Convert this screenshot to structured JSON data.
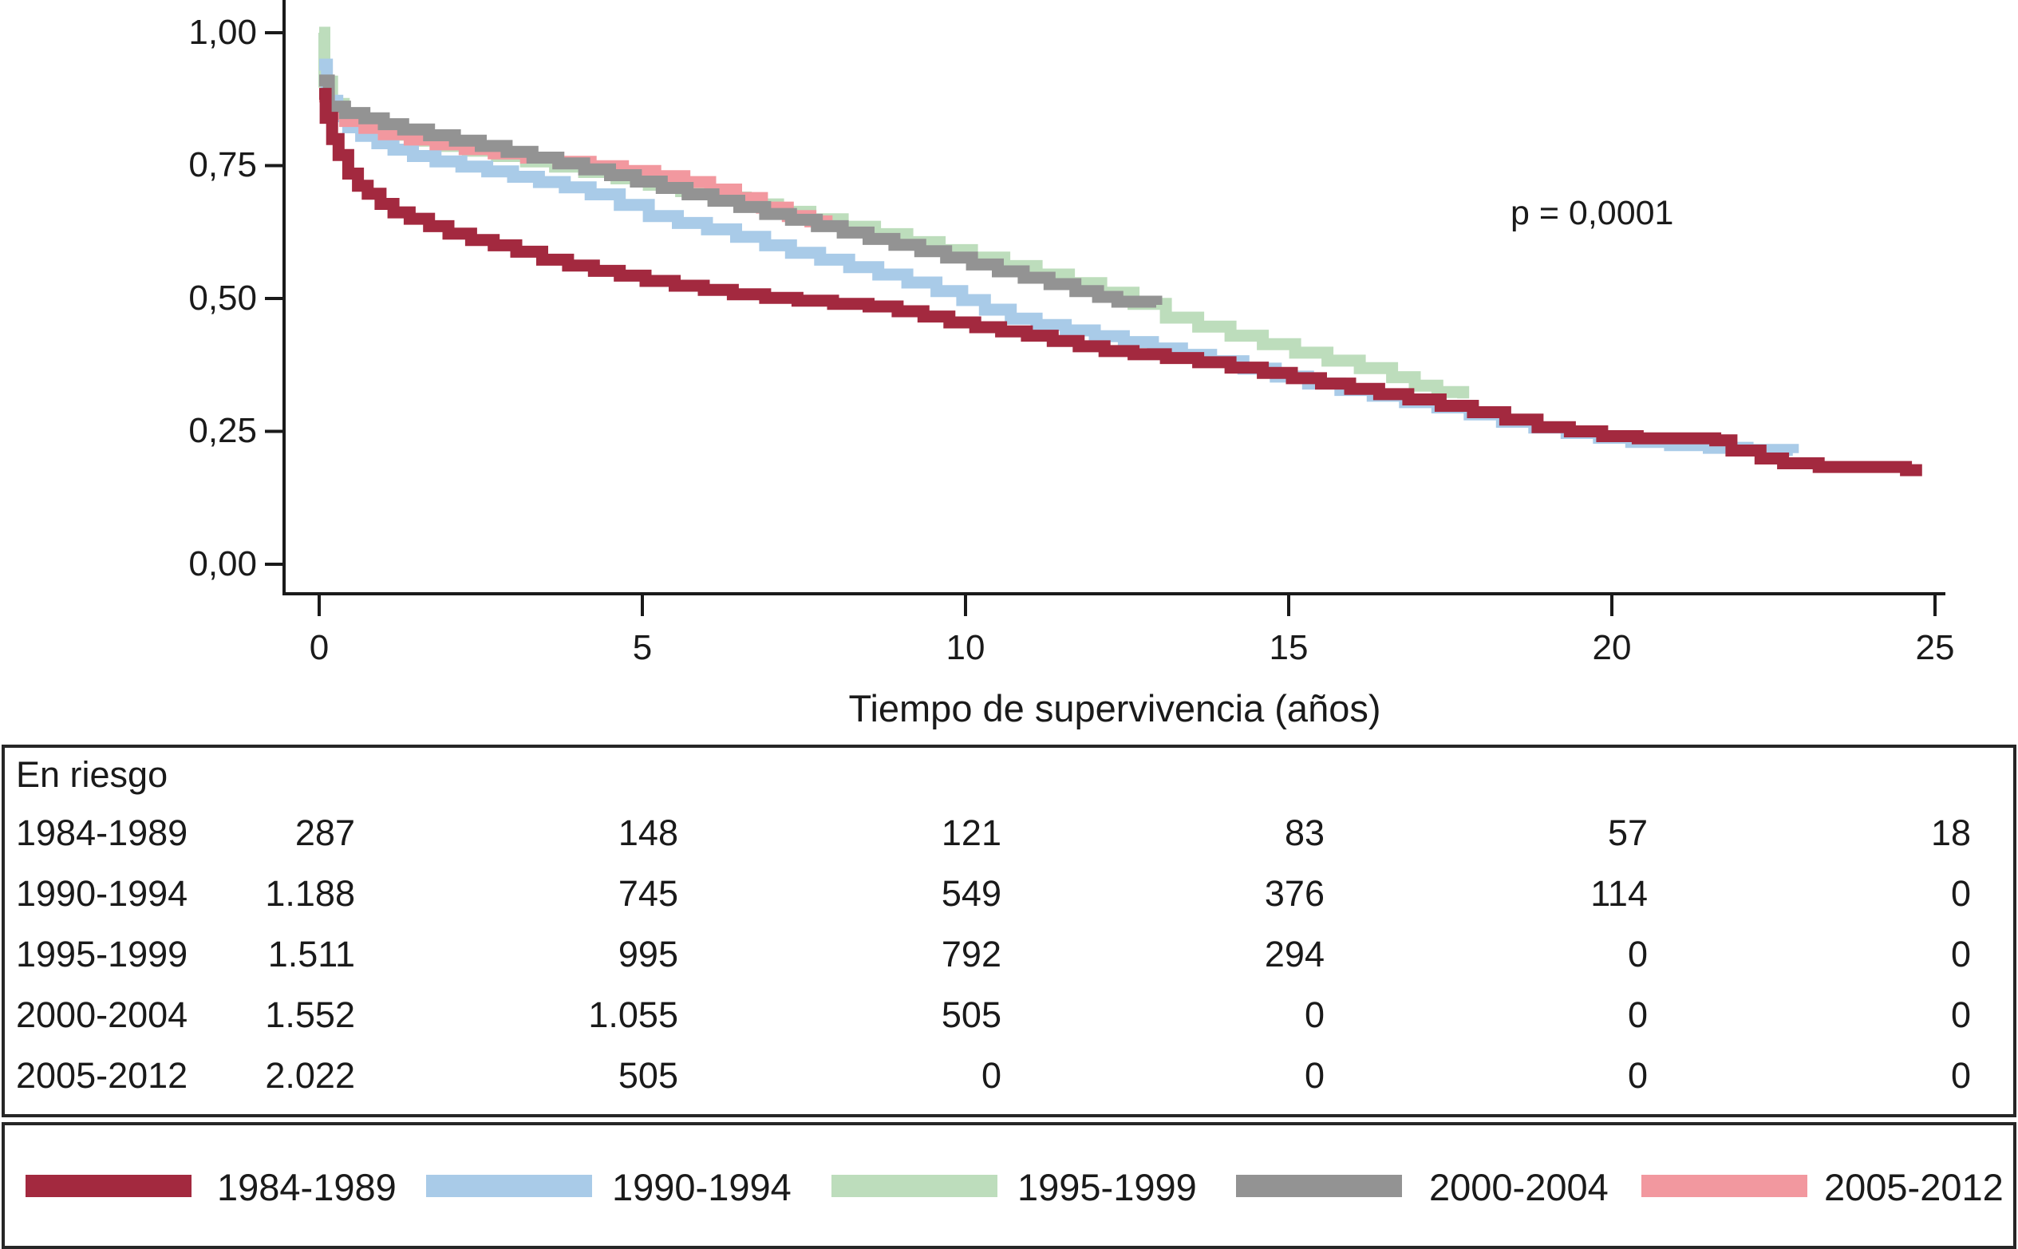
{
  "chart": {
    "p_value_text": "p = 0,0001",
    "x_axis": {
      "title": "Tiempo de supervivencia (años)",
      "ticks": [
        "0",
        "5",
        "10",
        "15",
        "20",
        "25"
      ]
    },
    "y_axis": {
      "ticks": [
        "1,00",
        "0,75",
        "0,50",
        "0,25",
        "0,00"
      ]
    }
  },
  "chart_data": {
    "type": "line",
    "subtype": "kaplan-meier-step",
    "title": "",
    "xlabel": "Tiempo de supervivencia (años)",
    "ylabel": "",
    "xlim": [
      0,
      25
    ],
    "ylim": [
      0.0,
      1.0
    ],
    "x_ticks": [
      0,
      5,
      10,
      15,
      20,
      25
    ],
    "y_ticks": [
      1.0,
      0.75,
      0.5,
      0.25,
      0.0
    ],
    "grid": false,
    "legend_position": "bottom",
    "annotation": {
      "text": "p = 0,0001",
      "x": 18.4,
      "y": 0.7
    },
    "axis_color": "#1a1a1a",
    "series": [
      {
        "name": "1984-1989",
        "color": "#A3293F",
        "points": [
          [
            0,
            0.885
          ],
          [
            0.1,
            0.84
          ],
          [
            0.2,
            0.8
          ],
          [
            0.3,
            0.77
          ],
          [
            0.45,
            0.735
          ],
          [
            0.6,
            0.712
          ],
          [
            0.75,
            0.697
          ],
          [
            0.95,
            0.678
          ],
          [
            1.15,
            0.662
          ],
          [
            1.4,
            0.65
          ],
          [
            1.7,
            0.636
          ],
          [
            2.0,
            0.622
          ],
          [
            2.35,
            0.61
          ],
          [
            2.7,
            0.6
          ],
          [
            3.05,
            0.588
          ],
          [
            3.45,
            0.573
          ],
          [
            3.85,
            0.562
          ],
          [
            4.25,
            0.552
          ],
          [
            4.65,
            0.543
          ],
          [
            5.05,
            0.533
          ],
          [
            5.5,
            0.524
          ],
          [
            5.95,
            0.516
          ],
          [
            6.4,
            0.508
          ],
          [
            6.9,
            0.501
          ],
          [
            7.4,
            0.496
          ],
          [
            7.95,
            0.49
          ],
          [
            8.5,
            0.485
          ],
          [
            8.95,
            0.476
          ],
          [
            9.35,
            0.466
          ],
          [
            9.75,
            0.455
          ],
          [
            10.15,
            0.446
          ],
          [
            10.55,
            0.438
          ],
          [
            10.95,
            0.43
          ],
          [
            11.35,
            0.42
          ],
          [
            11.75,
            0.41
          ],
          [
            12.15,
            0.401
          ],
          [
            12.6,
            0.395
          ],
          [
            13.1,
            0.388
          ],
          [
            13.6,
            0.38
          ],
          [
            14.1,
            0.37
          ],
          [
            14.6,
            0.36
          ],
          [
            15.05,
            0.35
          ],
          [
            15.5,
            0.34
          ],
          [
            15.95,
            0.33
          ],
          [
            16.4,
            0.32
          ],
          [
            16.85,
            0.31
          ],
          [
            17.35,
            0.298
          ],
          [
            17.85,
            0.286
          ],
          [
            18.35,
            0.272
          ],
          [
            18.85,
            0.258
          ],
          [
            19.35,
            0.25
          ],
          [
            19.85,
            0.241
          ],
          [
            20.4,
            0.237
          ],
          [
            21.6,
            0.233
          ],
          [
            21.85,
            0.214
          ],
          [
            22.3,
            0.199
          ],
          [
            22.65,
            0.19
          ],
          [
            23.2,
            0.183
          ],
          [
            24.55,
            0.177
          ],
          [
            24.8,
            0.177
          ]
        ]
      },
      {
        "name": "1990-1994",
        "color": "#A9CBE8",
        "points": [
          [
            0,
            0.94
          ],
          [
            0.12,
            0.872
          ],
          [
            0.28,
            0.843
          ],
          [
            0.45,
            0.822
          ],
          [
            0.65,
            0.806
          ],
          [
            0.9,
            0.792
          ],
          [
            1.15,
            0.78
          ],
          [
            1.45,
            0.768
          ],
          [
            1.8,
            0.758
          ],
          [
            2.2,
            0.748
          ],
          [
            2.6,
            0.739
          ],
          [
            3.0,
            0.729
          ],
          [
            3.4,
            0.719
          ],
          [
            3.8,
            0.709
          ],
          [
            4.2,
            0.696
          ],
          [
            4.65,
            0.676
          ],
          [
            5.1,
            0.655
          ],
          [
            5.55,
            0.642
          ],
          [
            6.0,
            0.63
          ],
          [
            6.45,
            0.616
          ],
          [
            6.9,
            0.6
          ],
          [
            7.3,
            0.586
          ],
          [
            7.75,
            0.573
          ],
          [
            8.2,
            0.559
          ],
          [
            8.65,
            0.545
          ],
          [
            9.1,
            0.53
          ],
          [
            9.55,
            0.514
          ],
          [
            9.95,
            0.497
          ],
          [
            10.3,
            0.479
          ],
          [
            10.7,
            0.462
          ],
          [
            11.1,
            0.45
          ],
          [
            11.55,
            0.44
          ],
          [
            12.0,
            0.429
          ],
          [
            12.45,
            0.418
          ],
          [
            12.9,
            0.406
          ],
          [
            13.35,
            0.394
          ],
          [
            13.8,
            0.382
          ],
          [
            14.3,
            0.368
          ],
          [
            14.8,
            0.353
          ],
          [
            15.3,
            0.34
          ],
          [
            15.8,
            0.328
          ],
          [
            16.3,
            0.317
          ],
          [
            16.8,
            0.305
          ],
          [
            17.3,
            0.295
          ],
          [
            17.8,
            0.282
          ],
          [
            18.3,
            0.268
          ],
          [
            18.8,
            0.257
          ],
          [
            19.3,
            0.247
          ],
          [
            19.8,
            0.238
          ],
          [
            20.3,
            0.23
          ],
          [
            20.9,
            0.224
          ],
          [
            21.5,
            0.219
          ],
          [
            22.1,
            0.215
          ],
          [
            22.8,
            0.209
          ]
        ]
      },
      {
        "name": "1995-1999",
        "color": "#BDDDBC",
        "points": [
          [
            0,
            1.0
          ],
          [
            0.08,
            0.908
          ],
          [
            0.2,
            0.866
          ],
          [
            0.38,
            0.845
          ],
          [
            0.6,
            0.831
          ],
          [
            0.85,
            0.819
          ],
          [
            1.15,
            0.808
          ],
          [
            1.5,
            0.797
          ],
          [
            1.9,
            0.787
          ],
          [
            2.3,
            0.778
          ],
          [
            2.75,
            0.768
          ],
          [
            3.2,
            0.758
          ],
          [
            3.65,
            0.748
          ],
          [
            4.1,
            0.738
          ],
          [
            4.6,
            0.726
          ],
          [
            5.1,
            0.714
          ],
          [
            5.6,
            0.702
          ],
          [
            6.1,
            0.69
          ],
          [
            6.6,
            0.677
          ],
          [
            7.1,
            0.663
          ],
          [
            7.6,
            0.649
          ],
          [
            8.1,
            0.635
          ],
          [
            8.6,
            0.621
          ],
          [
            9.1,
            0.606
          ],
          [
            9.6,
            0.591
          ],
          [
            10.1,
            0.577
          ],
          [
            10.6,
            0.561
          ],
          [
            11.1,
            0.545
          ],
          [
            11.6,
            0.529
          ],
          [
            12.1,
            0.511
          ],
          [
            12.6,
            0.49
          ],
          [
            13.1,
            0.464
          ],
          [
            13.6,
            0.447
          ],
          [
            14.1,
            0.43
          ],
          [
            14.6,
            0.414
          ],
          [
            15.1,
            0.398
          ],
          [
            15.6,
            0.383
          ],
          [
            16.1,
            0.369
          ],
          [
            16.6,
            0.352
          ],
          [
            16.95,
            0.336
          ],
          [
            17.3,
            0.324
          ],
          [
            17.7,
            0.312
          ]
        ]
      },
      {
        "name": "2000-2004",
        "color": "#939393",
        "points": [
          [
            0,
            0.91
          ],
          [
            0.15,
            0.861
          ],
          [
            0.4,
            0.849
          ],
          [
            0.7,
            0.839
          ],
          [
            1.0,
            0.828
          ],
          [
            1.3,
            0.818
          ],
          [
            1.7,
            0.807
          ],
          [
            2.1,
            0.797
          ],
          [
            2.5,
            0.787
          ],
          [
            2.9,
            0.776
          ],
          [
            3.3,
            0.765
          ],
          [
            3.7,
            0.754
          ],
          [
            4.1,
            0.743
          ],
          [
            4.5,
            0.732
          ],
          [
            4.9,
            0.72
          ],
          [
            5.3,
            0.708
          ],
          [
            5.7,
            0.696
          ],
          [
            6.1,
            0.684
          ],
          [
            6.5,
            0.672
          ],
          [
            6.9,
            0.659
          ],
          [
            7.3,
            0.648
          ],
          [
            7.7,
            0.636
          ],
          [
            8.1,
            0.624
          ],
          [
            8.5,
            0.612
          ],
          [
            8.9,
            0.601
          ],
          [
            9.3,
            0.589
          ],
          [
            9.7,
            0.577
          ],
          [
            10.1,
            0.564
          ],
          [
            10.5,
            0.551
          ],
          [
            10.9,
            0.539
          ],
          [
            11.3,
            0.527
          ],
          [
            11.7,
            0.514
          ],
          [
            12.05,
            0.503
          ],
          [
            12.35,
            0.494
          ],
          [
            12.95,
            0.488
          ]
        ]
      },
      {
        "name": "2005-2012",
        "color": "#F2989F",
        "points": [
          [
            0,
            0.88
          ],
          [
            0.15,
            0.847
          ],
          [
            0.4,
            0.834
          ],
          [
            0.7,
            0.821
          ],
          [
            1.0,
            0.809
          ],
          [
            1.4,
            0.799
          ],
          [
            1.8,
            0.79
          ],
          [
            2.25,
            0.781
          ],
          [
            2.7,
            0.773
          ],
          [
            3.2,
            0.765
          ],
          [
            3.7,
            0.757
          ],
          [
            4.2,
            0.749
          ],
          [
            4.7,
            0.74
          ],
          [
            5.2,
            0.73
          ],
          [
            5.65,
            0.719
          ],
          [
            6.05,
            0.705
          ],
          [
            6.45,
            0.689
          ],
          [
            6.85,
            0.671
          ],
          [
            7.25,
            0.655
          ],
          [
            7.6,
            0.645
          ],
          [
            7.85,
            0.641
          ]
        ]
      }
    ]
  },
  "risk_table": {
    "title": "En riesgo",
    "time_points": [
      0,
      5,
      10,
      15,
      20,
      25
    ],
    "rows": [
      {
        "label": "1984-1989",
        "values": [
          "287",
          "148",
          "121",
          "83",
          "57",
          "18"
        ]
      },
      {
        "label": "1990-1994",
        "values": [
          "1.188",
          "745",
          "549",
          "376",
          "114",
          "0"
        ]
      },
      {
        "label": "1995-1999",
        "values": [
          "1.511",
          "995",
          "792",
          "294",
          "0",
          "0"
        ]
      },
      {
        "label": "2000-2004",
        "values": [
          "1.552",
          "1.055",
          "505",
          "0",
          "0",
          "0"
        ]
      },
      {
        "label": "2005-2012",
        "values": [
          "2.022",
          "505",
          "0",
          "0",
          "0",
          "0"
        ]
      }
    ]
  },
  "legend": {
    "items": [
      {
        "label": "1984-1989",
        "color": "#A3293F"
      },
      {
        "label": "1990-1994",
        "color": "#A9CBE8"
      },
      {
        "label": "1995-1999",
        "color": "#BDDDBC"
      },
      {
        "label": "2000-2004",
        "color": "#939393"
      },
      {
        "label": "2005-2012",
        "color": "#F2989F"
      }
    ]
  }
}
